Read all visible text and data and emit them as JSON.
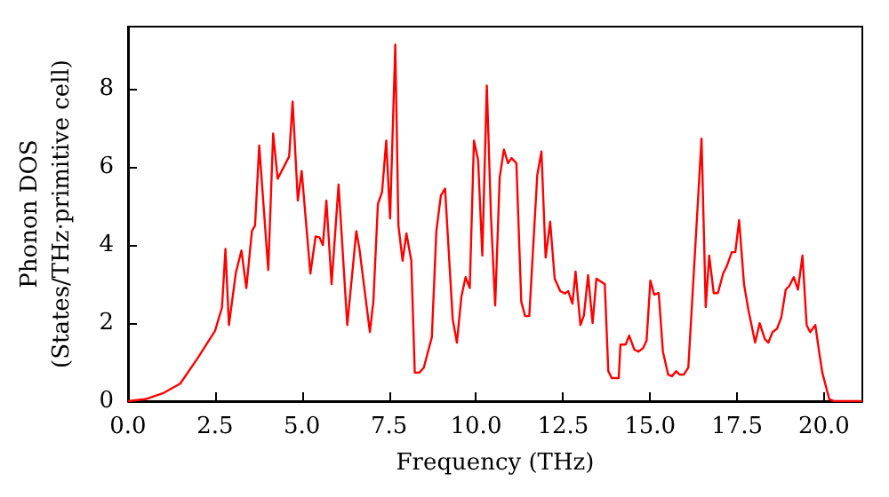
{
  "chart_data": {
    "type": "line",
    "xlabel": "Frequency (THz)",
    "ylabel": "Phonon DOS\n(States/THz·primitive cell)",
    "xlim": [
      0,
      21.1
    ],
    "xticks": [
      {
        "value": 0,
        "label": "0.0"
      },
      {
        "value": 2.5,
        "label": "2.5"
      },
      {
        "value": 5,
        "label": "5.0"
      },
      {
        "value": 7.5,
        "label": "7.5"
      },
      {
        "value": 10,
        "label": "10.0"
      },
      {
        "value": 12.5,
        "label": "12.5"
      },
      {
        "value": 15,
        "label": "15.0"
      },
      {
        "value": 17.5,
        "label": "17.5"
      },
      {
        "value": 20,
        "label": "20.0"
      }
    ],
    "ylim": [
      0,
      9.6
    ],
    "yticks": [
      0,
      2,
      4,
      6,
      8
    ],
    "grid": false,
    "marker": "none",
    "line_style": "solid",
    "x": [
      0,
      0.5,
      1,
      1.5,
      2,
      2.5,
      2.7,
      2.8,
      2.9,
      3.1,
      3.26,
      3.4,
      3.56,
      3.65,
      3.77,
      4.03,
      4.17,
      4.3,
      4.63,
      4.73,
      4.88,
      4.99,
      5.24,
      5.39,
      5.5,
      5.6,
      5.7,
      5.85,
      6.05,
      6.3,
      6.56,
      6.65,
      6.95,
      7.05,
      7.18,
      7.3,
      7.42,
      7.53,
      7.68,
      7.77,
      7.89,
      8.0,
      8.14,
      8.24,
      8.37,
      8.5,
      8.73,
      8.86,
      8.99,
      9.11,
      9.33,
      9.45,
      9.58,
      9.7,
      9.82,
      9.94,
      10.06,
      10.18,
      10.31,
      10.43,
      10.55,
      10.68,
      10.8,
      10.92,
      11.02,
      11.16,
      11.3,
      11.41,
      11.53,
      11.76,
      11.88,
      12.0,
      12.13,
      12.26,
      12.42,
      12.55,
      12.65,
      12.77,
      12.86,
      13.0,
      13.1,
      13.22,
      13.35,
      13.46,
      13.7,
      13.8,
      13.9,
      14.1,
      14.15,
      14.3,
      14.4,
      14.55,
      14.67,
      14.8,
      14.9,
      15.01,
      15.12,
      15.25,
      15.37,
      15.52,
      15.63,
      15.75,
      15.85,
      15.97,
      16.1,
      16.48,
      16.6,
      16.7,
      16.83,
      16.95,
      17.1,
      17.2,
      17.35,
      17.45,
      17.56,
      17.7,
      17.83,
      18.02,
      18.15,
      18.3,
      18.4,
      18.52,
      18.65,
      18.77,
      18.9,
      19.0,
      19.13,
      19.25,
      19.38,
      19.5,
      19.6,
      19.75,
      19.85,
      19.95,
      20.15,
      20.3,
      21.1
    ],
    "series": [
      {
        "color": "#ff0000",
        "values": [
          0,
          0.05,
          0.2,
          0.45,
          1.1,
          1.8,
          2.4,
          3.9,
          1.95,
          3.3,
          3.86,
          2.9,
          4.36,
          4.5,
          6.55,
          3.36,
          6.86,
          5.7,
          6.27,
          7.68,
          5.14,
          5.9,
          3.27,
          4.22,
          4.2,
          4.0,
          5.14,
          3.0,
          5.55,
          1.95,
          4.36,
          3.9,
          1.77,
          2.55,
          5.05,
          5.36,
          6.68,
          4.68,
          9.14,
          4.5,
          3.6,
          4.3,
          3.6,
          0.73,
          0.73,
          0.86,
          1.64,
          4.36,
          5.27,
          5.45,
          2.1,
          1.5,
          2.68,
          3.18,
          2.9,
          6.68,
          6.18,
          3.73,
          8.09,
          4.73,
          2.45,
          5.73,
          6.45,
          6.1,
          6.23,
          6.1,
          2.55,
          2.18,
          2.18,
          5.8,
          6.4,
          3.68,
          4.6,
          3.14,
          2.82,
          2.76,
          2.82,
          2.5,
          3.32,
          1.95,
          2.2,
          3.23,
          2.0,
          3.14,
          3.0,
          0.77,
          0.59,
          0.59,
          1.45,
          1.45,
          1.68,
          1.32,
          1.27,
          1.36,
          1.55,
          3.09,
          2.73,
          2.77,
          1.27,
          0.68,
          0.64,
          0.77,
          0.68,
          0.68,
          0.86,
          6.73,
          2.41,
          3.73,
          2.77,
          2.77,
          3.27,
          3.45,
          3.82,
          3.82,
          4.64,
          3.0,
          2.32,
          1.5,
          2.0,
          1.59,
          1.5,
          1.77,
          1.86,
          2.14,
          2.86,
          2.95,
          3.18,
          2.86,
          3.73,
          1.95,
          1.77,
          1.95,
          1.32,
          0.73,
          0.05,
          0,
          0
        ]
      }
    ]
  }
}
